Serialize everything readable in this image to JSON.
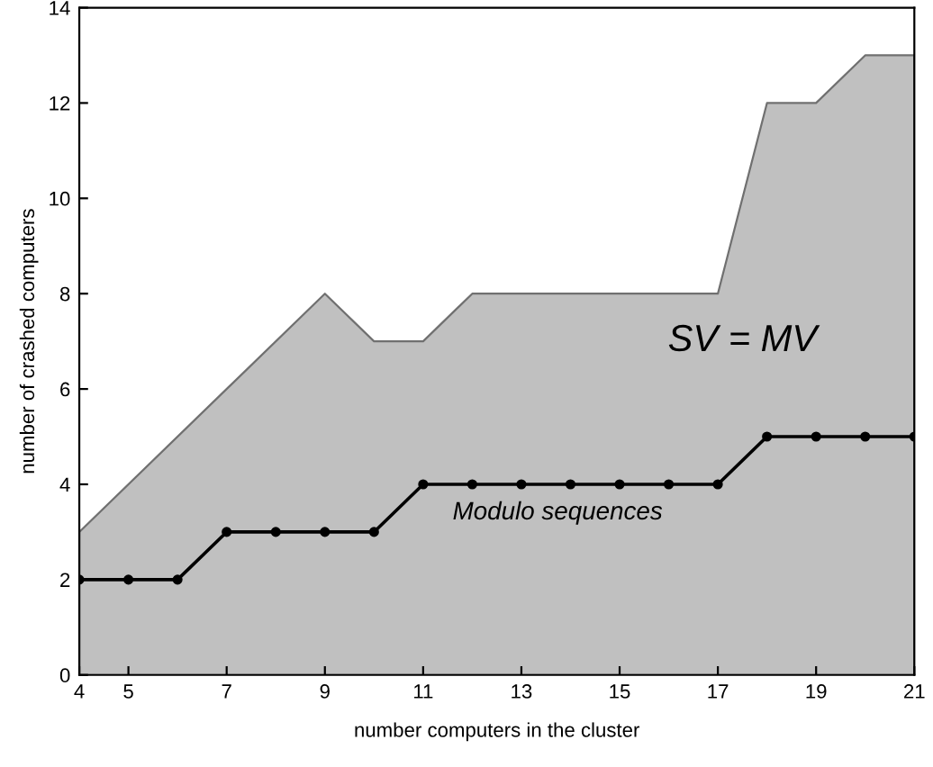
{
  "chart_data": {
    "type": "line",
    "xlabel": "number computers in the cluster",
    "ylabel": "number of crashed computers",
    "x": [
      4,
      5,
      6,
      7,
      8,
      9,
      10,
      11,
      12,
      13,
      14,
      15,
      16,
      17,
      18,
      19,
      20,
      21
    ],
    "series": [
      {
        "name": "SV = MV",
        "type": "area",
        "color": "#c0c0c0",
        "x": [
          4,
          9,
          10,
          11,
          12,
          17,
          18,
          19,
          20,
          21
        ],
        "values": [
          3,
          8,
          7,
          7,
          8,
          8,
          12,
          12,
          13,
          13
        ]
      },
      {
        "name": "Modulo sequences",
        "color": "#000000",
        "marker": "circle",
        "values": [
          2,
          2,
          2,
          3,
          3,
          3,
          3,
          4,
          4,
          4,
          4,
          4,
          4,
          4,
          5,
          5,
          5,
          5
        ]
      }
    ],
    "xlim": [
      4,
      21
    ],
    "ylim": [
      0,
      14
    ],
    "xticks": [
      4,
      5,
      7,
      9,
      11,
      13,
      15,
      17,
      19,
      21
    ],
    "yticks": [
      0,
      2,
      4,
      6,
      8,
      10,
      12,
      14
    ],
    "grid": false,
    "legend": false
  }
}
